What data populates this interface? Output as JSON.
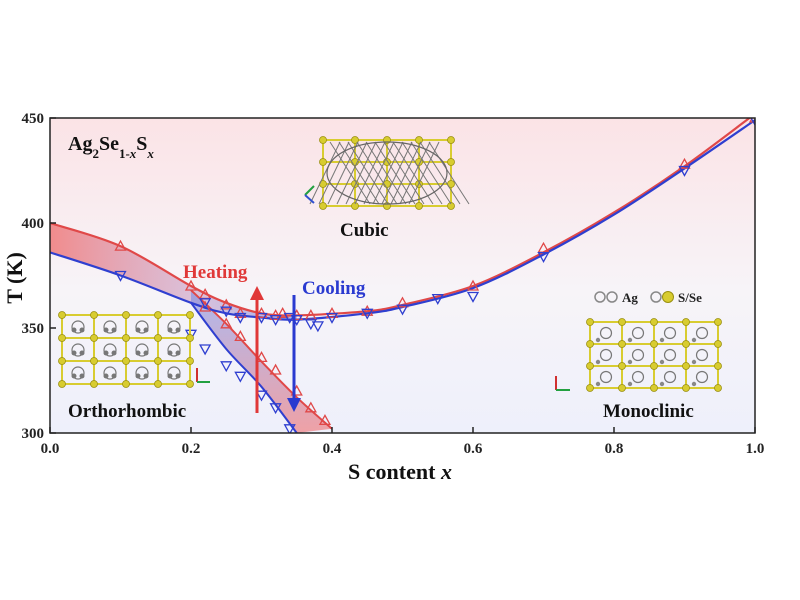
{
  "chart_data": {
    "type": "scatter",
    "title": "",
    "compound": {
      "base": "Ag",
      "sub1": "2",
      "mid": "Se",
      "sub2": "1-",
      "sub2_italic": "x",
      "tail": "S",
      "sub3_italic": "x"
    },
    "xlabel": {
      "text": "S content ",
      "italic": "x"
    },
    "ylabel": "T (K)",
    "xlim": [
      0.0,
      1.0
    ],
    "ylim": [
      300,
      450
    ],
    "xticks": [
      "0.0",
      "0.2",
      "0.4",
      "0.6",
      "0.8",
      "1.0"
    ],
    "yticks": [
      "300",
      "350",
      "400",
      "450"
    ],
    "grid": false,
    "phase_labels": [
      "Cubic",
      "Orthorhombic",
      "Monoclinic"
    ],
    "arrow_labels": {
      "heating": "Heating",
      "cooling": "Cooling"
    },
    "legend": {
      "ag_label": "Ag",
      "s_label": "S/Se"
    },
    "colors": {
      "heating": "#e04848",
      "cooling": "#2f3fd0",
      "crystal": "#d8cc30",
      "ag_atom": "#888888"
    },
    "series": [
      {
        "name": "Heating",
        "marker": "triangle-up",
        "curve": [
          [
            0.0,
            400
          ],
          [
            0.1,
            389
          ],
          [
            0.2,
            370
          ],
          [
            0.25,
            362
          ],
          [
            0.3,
            357
          ],
          [
            0.35,
            356
          ],
          [
            0.45,
            358
          ],
          [
            0.5,
            361
          ],
          [
            0.6,
            370
          ],
          [
            0.7,
            386
          ],
          [
            0.8,
            405
          ],
          [
            0.9,
            427
          ],
          [
            1.0,
            452
          ]
        ],
        "lower_curve": [
          [
            0.2,
            368
          ],
          [
            0.25,
            352
          ],
          [
            0.3,
            334
          ],
          [
            0.35,
            317
          ],
          [
            0.4,
            302
          ]
        ],
        "points": [
          [
            0.1,
            389
          ],
          [
            0.2,
            370
          ],
          [
            0.22,
            366
          ],
          [
            0.25,
            361
          ],
          [
            0.27,
            357
          ],
          [
            0.3,
            357
          ],
          [
            0.32,
            356
          ],
          [
            0.33,
            357
          ],
          [
            0.35,
            356
          ],
          [
            0.37,
            356
          ],
          [
            0.4,
            357
          ],
          [
            0.45,
            358
          ],
          [
            0.5,
            362
          ],
          [
            0.6,
            370
          ],
          [
            0.7,
            388
          ],
          [
            0.9,
            428
          ],
          [
            1.0,
            450
          ],
          [
            0.22,
            360
          ],
          [
            0.25,
            352
          ],
          [
            0.27,
            346
          ],
          [
            0.3,
            336
          ],
          [
            0.32,
            330
          ],
          [
            0.35,
            320
          ],
          [
            0.37,
            312
          ],
          [
            0.39,
            306
          ]
        ]
      },
      {
        "name": "Cooling",
        "marker": "triangle-down",
        "curve": [
          [
            0.0,
            386
          ],
          [
            0.1,
            375
          ],
          [
            0.2,
            362
          ],
          [
            0.25,
            357
          ],
          [
            0.3,
            355
          ],
          [
            0.35,
            354
          ],
          [
            0.45,
            357
          ],
          [
            0.5,
            360
          ],
          [
            0.6,
            369
          ],
          [
            0.7,
            385
          ],
          [
            0.8,
            404
          ],
          [
            0.9,
            426
          ],
          [
            1.0,
            449
          ]
        ],
        "lower_curve": [
          [
            0.2,
            362
          ],
          [
            0.25,
            340
          ],
          [
            0.3,
            322
          ],
          [
            0.35,
            300
          ]
        ],
        "points": [
          [
            0.1,
            375
          ],
          [
            0.22,
            362
          ],
          [
            0.25,
            358
          ],
          [
            0.27,
            355
          ],
          [
            0.3,
            355
          ],
          [
            0.32,
            354
          ],
          [
            0.34,
            355
          ],
          [
            0.35,
            354
          ],
          [
            0.37,
            352
          ],
          [
            0.38,
            351
          ],
          [
            0.4,
            355
          ],
          [
            0.45,
            357
          ],
          [
            0.5,
            359
          ],
          [
            0.55,
            364
          ],
          [
            0.6,
            365
          ],
          [
            0.7,
            384
          ],
          [
            0.9,
            425
          ],
          [
            1.0,
            449
          ],
          [
            0.2,
            347
          ],
          [
            0.22,
            340
          ],
          [
            0.25,
            332
          ],
          [
            0.27,
            327
          ],
          [
            0.3,
            318
          ],
          [
            0.32,
            312
          ],
          [
            0.34,
            302
          ]
        ]
      }
    ]
  }
}
